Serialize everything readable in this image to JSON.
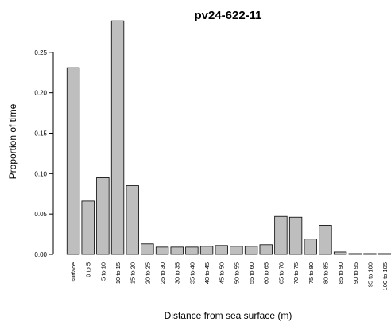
{
  "chart_data": {
    "type": "bar",
    "title": "pv24-622-11",
    "x_label": "Distance from sea surface (m)",
    "y_label": "Proportion of time",
    "categories": [
      "surface",
      "0 to 5",
      "5 to 10",
      "10 to 15",
      "15 to 20",
      "20 to 25",
      "25 to 30",
      "30 to 35",
      "35 to 40",
      "40 to 45",
      "45 to 50",
      "50 to 55",
      "55 to 60",
      "60 to 65",
      "65 to 70",
      "70 to 75",
      "75 to 80",
      "80 to 85",
      "85 to 90",
      "90 to 95",
      "95 to 100",
      "100 to 105"
    ],
    "values": [
      0.231,
      0.066,
      0.095,
      0.289,
      0.085,
      0.013,
      0.009,
      0.009,
      0.009,
      0.01,
      0.011,
      0.01,
      0.01,
      0.012,
      0.047,
      0.046,
      0.019,
      0.036,
      0.003,
      0.001,
      0.001,
      0.001
    ],
    "color": "#bebebe",
    "ylim": [
      0,
      0.3
    ],
    "yticks": [
      {
        "value": 0,
        "label": "0.00"
      },
      0.05,
      {
        "value": 0.1,
        "label": "0.10"
      },
      0.15,
      {
        "value": 0.2,
        "label": "0.20"
      },
      0.25
    ]
  }
}
